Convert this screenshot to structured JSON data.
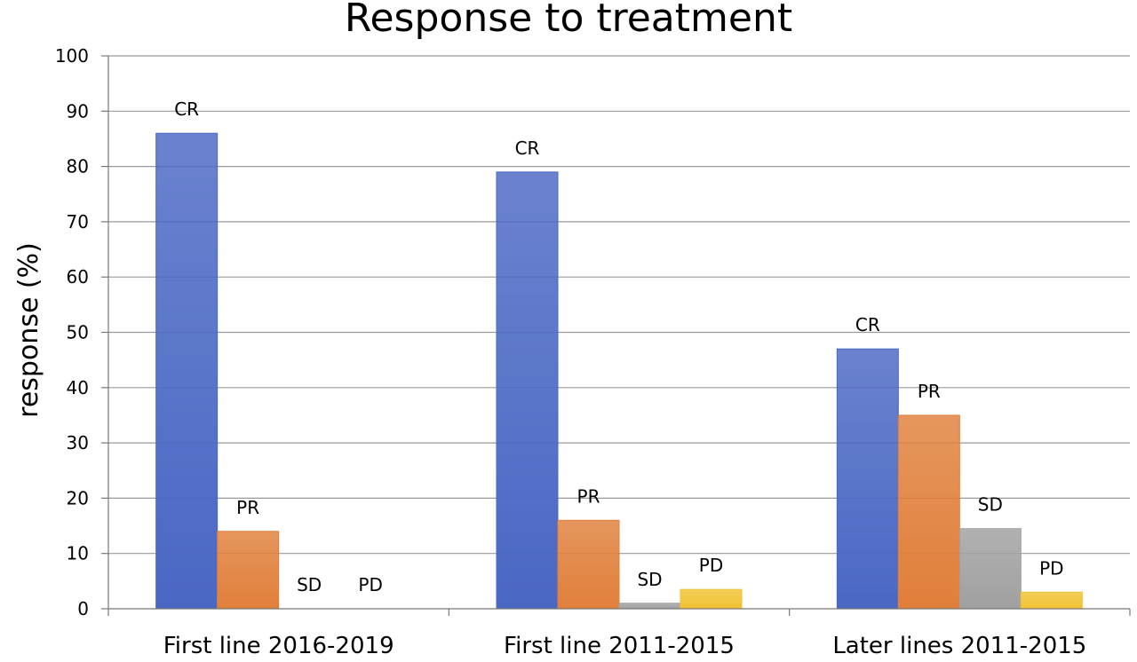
{
  "chart_data": {
    "type": "bar",
    "title": "Response to treatment",
    "ylabel": "response (%)",
    "xlabel": "",
    "ylim": [
      0,
      100
    ],
    "yticks": [
      0,
      10,
      20,
      30,
      40,
      50,
      60,
      70,
      80,
      90,
      100
    ],
    "grid": true,
    "categories": [
      "First line 2016-2019",
      "First line 2011-2015",
      "Later lines 2011-2015"
    ],
    "series": [
      {
        "name": "CR",
        "color": "#4a67c4",
        "values": [
          86,
          79,
          47
        ],
        "labels": [
          "CR",
          "CR",
          "CR"
        ]
      },
      {
        "name": "PR",
        "color": "#e07f3a",
        "values": [
          14,
          16,
          35
        ],
        "labels": [
          "PR",
          "PR",
          "PR"
        ]
      },
      {
        "name": "SD",
        "color": "#a0a0a0",
        "values": [
          0,
          1,
          14.5
        ],
        "labels": [
          "SD",
          "SD",
          "SD"
        ]
      },
      {
        "name": "PD",
        "color": "#f1c232",
        "values": [
          0,
          3.5,
          3
        ],
        "labels": [
          "PD",
          "PD",
          "PD"
        ]
      }
    ]
  }
}
